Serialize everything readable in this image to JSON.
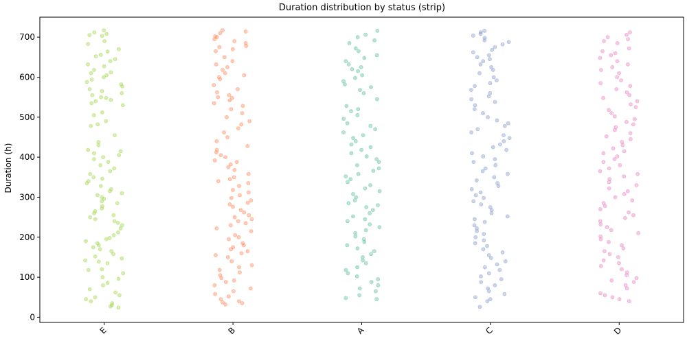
{
  "chart_data": {
    "type": "scatter",
    "title": "Duration distribution by status (strip)",
    "xlabel": "",
    "ylabel": "Duration (h)",
    "categories": [
      "E",
      "B",
      "A",
      "C",
      "D"
    ],
    "ylim": [
      -13,
      750
    ],
    "yticks": [
      0,
      100,
      200,
      300,
      400,
      500,
      600,
      700
    ],
    "grid": false,
    "series": [
      {
        "category": "E",
        "color": "#a6d854",
        "values": [
          717,
          708,
          705,
          712,
          703,
          690,
          683,
          670,
          664,
          656,
          652,
          645,
          640,
          632,
          627,
          618,
          612,
          610,
          605,
          600,
          594,
          588,
          582,
          577,
          570,
          565,
          560,
          555,
          550,
          548,
          543,
          540,
          535,
          530,
          512,
          505,
          490,
          482,
          478,
          455,
          438,
          430,
          418,
          415,
          410,
          405,
          400,
          395,
          388,
          380,
          372,
          365,
          358,
          350,
          346,
          340,
          335,
          328,
          320,
          315,
          310,
          305,
          300,
          296,
          290,
          285,
          278,
          272,
          265,
          260,
          255,
          250,
          245,
          240,
          236,
          230,
          222,
          212,
          205,
          198,
          195,
          190,
          185,
          180,
          175,
          170,
          165,
          158,
          152,
          147,
          142,
          139,
          135,
          120,
          118,
          110,
          100,
          96,
          86,
          80,
          70,
          62,
          55,
          50,
          45,
          40,
          35,
          30,
          27,
          24
        ]
      },
      {
        "category": "B",
        "color": "#fc8d62",
        "values": [
          717,
          714,
          710,
          702,
          700,
          695,
          690,
          685,
          678,
          675,
          670,
          665,
          650,
          640,
          632,
          625,
          618,
          610,
          605,
          600,
          595,
          580,
          570,
          562,
          555,
          550,
          548,
          542,
          535,
          528,
          520,
          510,
          500,
          490,
          482,
          472,
          462,
          450,
          440,
          428,
          418,
          412,
          405,
          400,
          392,
          388,
          382,
          375,
          368,
          358,
          350,
          345,
          340,
          335,
          328,
          318,
          312,
          305,
          298,
          292,
          286,
          282,
          276,
          268,
          262,
          255,
          250,
          245,
          240,
          235,
          230,
          222,
          215,
          205,
          200,
          195,
          185,
          180,
          175,
          170,
          165,
          160,
          155,
          150,
          140,
          130,
          125,
          118,
          112,
          105,
          98,
          92,
          88,
          80,
          72,
          65,
          58,
          52,
          45,
          40,
          37,
          35,
          32
        ]
      },
      {
        "category": "A",
        "color": "#66c2a5",
        "values": [
          716,
          706,
          700,
          692,
          685,
          672,
          665,
          655,
          648,
          640,
          632,
          625,
          620,
          615,
          605,
          598,
          590,
          582,
          575,
          568,
          560,
          545,
          528,
          520,
          515,
          505,
          496,
          485,
          478,
          470,
          462,
          455,
          448,
          440,
          432,
          425,
          418,
          410,
          402,
          395,
          388,
          380,
          372,
          366,
          358,
          352,
          345,
          338,
          330,
          322,
          315,
          308,
          300,
          292,
          285,
          280,
          275,
          268,
          260,
          252,
          245,
          240,
          232,
          225,
          218,
          210,
          202,
          195,
          188,
          180,
          172,
          165,
          158,
          150,
          142,
          135,
          125,
          118,
          110,
          102,
          95,
          88,
          80,
          72,
          65,
          55,
          48,
          45
        ]
      },
      {
        "category": "C",
        "color": "#8da0cb",
        "values": [
          716,
          712,
          708,
          704,
          698,
          692,
          688,
          682,
          675,
          668,
          662,
          655,
          650,
          645,
          640,
          632,
          625,
          618,
          610,
          600,
          592,
          585,
          578,
          568,
          560,
          552,
          545,
          538,
          530,
          520,
          510,
          500,
          492,
          485,
          478,
          470,
          462,
          455,
          448,
          440,
          432,
          425,
          418,
          410,
          402,
          395,
          388,
          380,
          372,
          365,
          358,
          350,
          342,
          335,
          328,
          320,
          312,
          305,
          298,
          290,
          282,
          275,
          268,
          260,
          252,
          245,
          238,
          230,
          222,
          215,
          208,
          200,
          192,
          185,
          178,
          170,
          162,
          155,
          148,
          140,
          132,
          125,
          118,
          110,
          102,
          95,
          88,
          80,
          72,
          65,
          58,
          50,
          45,
          40,
          26
        ]
      },
      {
        "category": "D",
        "color": "#e78ac3",
        "values": [
          712,
          706,
          700,
          695,
          690,
          685,
          672,
          665,
          660,
          655,
          648,
          640,
          632,
          625,
          618,
          610,
          600,
          592,
          585,
          578,
          570,
          562,
          555,
          548,
          540,
          532,
          525,
          518,
          510,
          502,
          495,
          488,
          482,
          475,
          468,
          460,
          452,
          445,
          438,
          430,
          422,
          415,
          410,
          402,
          395,
          388,
          380,
          372,
          365,
          358,
          352,
          345,
          338,
          330,
          322,
          315,
          308,
          300,
          292,
          285,
          278,
          270,
          262,
          255,
          248,
          240,
          232,
          225,
          218,
          210,
          202,
          195,
          188,
          180,
          172,
          165,
          158,
          150,
          142,
          135,
          128,
          120,
          112,
          105,
          98,
          92,
          88,
          80,
          72,
          60,
          55,
          50,
          45,
          40
        ]
      }
    ]
  }
}
